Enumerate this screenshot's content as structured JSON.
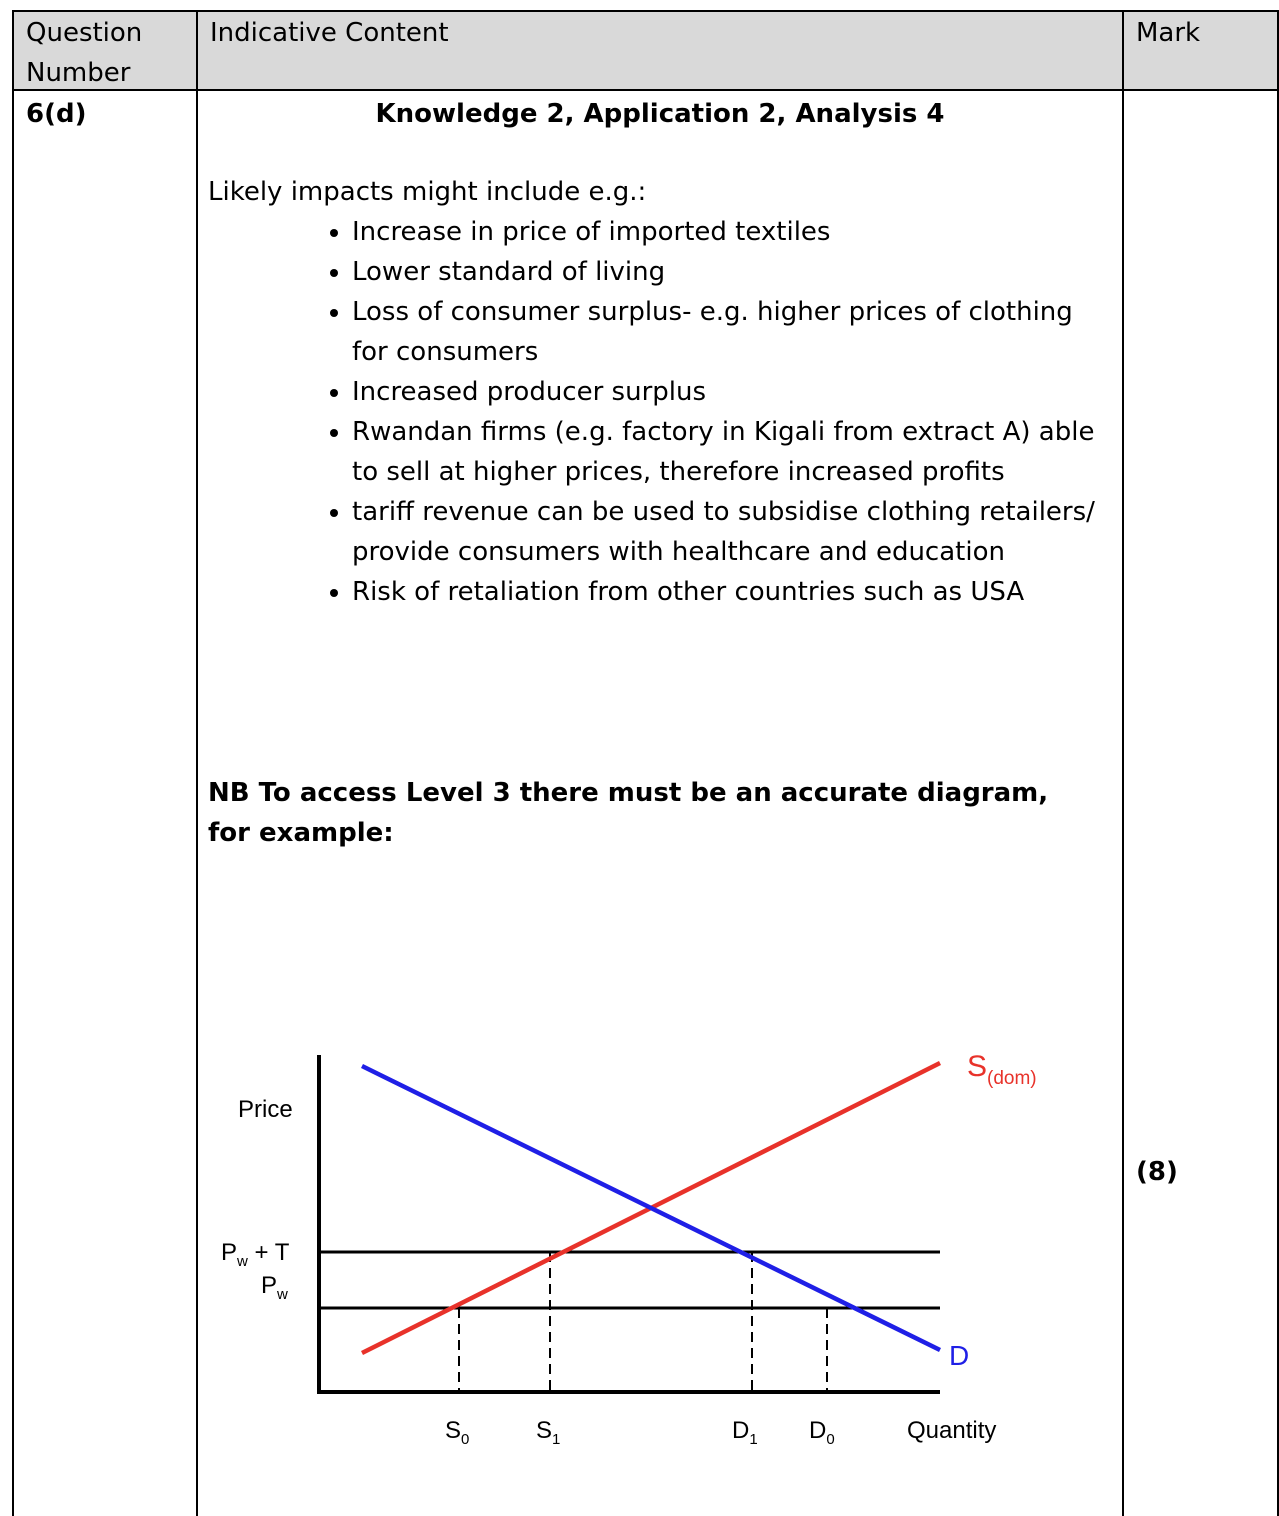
{
  "table": {
    "headers": {
      "question_number": "Question Number",
      "indicative_content": "Indicative Content",
      "mark": "Mark"
    },
    "row": {
      "question_number": "6(d)",
      "heading": "Knowledge 2, Application 2, Analysis 4",
      "intro": "Likely impacts might include e.g.:",
      "bullets": [
        "Increase in price of imported textiles",
        "Lower standard of living",
        "Loss of consumer surplus- e.g. higher prices of clothing for consumers",
        "Increased producer surplus",
        "Rwandan firms (e.g. factory in Kigali from extract A) able to sell at higher prices, therefore increased profits",
        "tariff revenue can be used to subsidise clothing retailers/ provide consumers with healthcare and education",
        "Risk of retaliation from other countries such as USA"
      ],
      "note_line1": "NB To access Level 3 there must be an accurate diagram,",
      "note_line2": "for example:",
      "mark": "(8)"
    }
  },
  "diagram": {
    "y_axis_label": "Price",
    "x_axis_label": "Quantity",
    "supply_label": "S",
    "supply_sub": "(dom)",
    "demand_label": "D",
    "price_tariff_label_main": "P",
    "price_tariff_label_sub": "w",
    "price_tariff_label_suffix": " + T",
    "price_world_label_main": "P",
    "price_world_label_sub": "w",
    "x_ticks": [
      {
        "main": "S",
        "sub": "0"
      },
      {
        "main": "S",
        "sub": "1"
      },
      {
        "main": "D",
        "sub": "1"
      },
      {
        "main": "D",
        "sub": "0"
      }
    ],
    "colors": {
      "supply": "#e8322a",
      "demand": "#1f1fe6",
      "axes": "#000000"
    }
  }
}
